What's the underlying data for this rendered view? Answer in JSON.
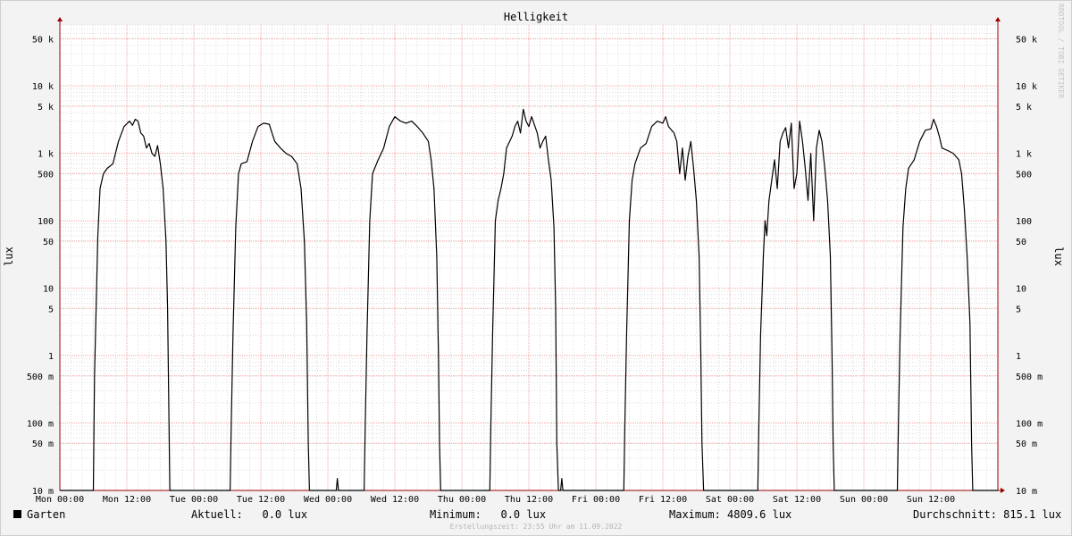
{
  "chart_data": {
    "type": "line",
    "title": "Helligkeit",
    "ylabel": "lux",
    "y_scale": "log",
    "ylim": [
      0.01,
      80000
    ],
    "y_ticks": [
      {
        "value": 50000,
        "label": "50 k"
      },
      {
        "value": 10000,
        "label": "10 k"
      },
      {
        "value": 5000,
        "label": "5 k"
      },
      {
        "value": 1000,
        "label": "1 k"
      },
      {
        "value": 500,
        "label": "500"
      },
      {
        "value": 100,
        "label": "100"
      },
      {
        "value": 50,
        "label": "50"
      },
      {
        "value": 10,
        "label": "10"
      },
      {
        "value": 5,
        "label": "5"
      },
      {
        "value": 1,
        "label": "1"
      },
      {
        "value": 0.5,
        "label": "500 m"
      },
      {
        "value": 0.1,
        "label": "100 m"
      },
      {
        "value": 0.05,
        "label": "50 m"
      },
      {
        "value": 0.01,
        "label": "10 m"
      }
    ],
    "x_unit": "hours",
    "xlim": [
      0,
      168
    ],
    "x_ticks": [
      {
        "value": 0,
        "label": "Mon 00:00"
      },
      {
        "value": 12,
        "label": "Mon 12:00"
      },
      {
        "value": 24,
        "label": "Tue 00:00"
      },
      {
        "value": 36,
        "label": "Tue 12:00"
      },
      {
        "value": 48,
        "label": "Wed 00:00"
      },
      {
        "value": 60,
        "label": "Wed 12:00"
      },
      {
        "value": 72,
        "label": "Thu 00:00"
      },
      {
        "value": 84,
        "label": "Thu 12:00"
      },
      {
        "value": 96,
        "label": "Fri 00:00"
      },
      {
        "value": 108,
        "label": "Fri 12:00"
      },
      {
        "value": 120,
        "label": "Sat 00:00"
      },
      {
        "value": 132,
        "label": "Sat 12:00"
      },
      {
        "value": 144,
        "label": "Sun 00:00"
      },
      {
        "value": 156,
        "label": "Sun 12:00"
      }
    ],
    "grid": true,
    "colors": {
      "line": "#000000",
      "grid": "#f2a6a6",
      "axis": "#9b0000",
      "background": "#ffffff"
    },
    "series": [
      {
        "name": "Garten",
        "points": [
          [
            0,
            0.01
          ],
          [
            6.0,
            0.01
          ],
          [
            6.2,
            0.5
          ],
          [
            6.5,
            5
          ],
          [
            6.8,
            60
          ],
          [
            7.2,
            300
          ],
          [
            7.8,
            500
          ],
          [
            8.5,
            600
          ],
          [
            9.5,
            700
          ],
          [
            10.5,
            1500
          ],
          [
            11.5,
            2500
          ],
          [
            12.5,
            3000
          ],
          [
            13.0,
            2600
          ],
          [
            13.5,
            3200
          ],
          [
            14.0,
            3000
          ],
          [
            14.5,
            2000
          ],
          [
            15.0,
            1800
          ],
          [
            15.5,
            1200
          ],
          [
            16.0,
            1400
          ],
          [
            16.5,
            1000
          ],
          [
            17.0,
            900
          ],
          [
            17.5,
            1300
          ],
          [
            18.0,
            700
          ],
          [
            18.5,
            300
          ],
          [
            19.0,
            50
          ],
          [
            19.3,
            5
          ],
          [
            19.5,
            0.2
          ],
          [
            19.7,
            0.01
          ],
          [
            30.5,
            0.01
          ],
          [
            30.7,
            0.1
          ],
          [
            31.0,
            2
          ],
          [
            31.5,
            80
          ],
          [
            32.0,
            500
          ],
          [
            32.5,
            700
          ],
          [
            33.5,
            750
          ],
          [
            34.5,
            1500
          ],
          [
            35.5,
            2500
          ],
          [
            36.5,
            2800
          ],
          [
            37.5,
            2700
          ],
          [
            38.0,
            2000
          ],
          [
            38.5,
            1500
          ],
          [
            39.5,
            1200
          ],
          [
            40.5,
            1000
          ],
          [
            41.5,
            900
          ],
          [
            42.5,
            700
          ],
          [
            43.2,
            300
          ],
          [
            43.8,
            50
          ],
          [
            44.2,
            3
          ],
          [
            44.5,
            0.05
          ],
          [
            44.7,
            0.01
          ],
          [
            49.5,
            0.01
          ],
          [
            49.7,
            0.015
          ],
          [
            49.9,
            0.01
          ],
          [
            54.5,
            0.01
          ],
          [
            54.7,
            0.1
          ],
          [
            55.0,
            2
          ],
          [
            55.5,
            100
          ],
          [
            56.0,
            500
          ],
          [
            57.0,
            800
          ],
          [
            58.0,
            1200
          ],
          [
            59.0,
            2500
          ],
          [
            60.0,
            3500
          ],
          [
            61.0,
            3000
          ],
          [
            62.0,
            2800
          ],
          [
            63.0,
            3000
          ],
          [
            64.0,
            2500
          ],
          [
            65.0,
            2000
          ],
          [
            66.0,
            1500
          ],
          [
            66.5,
            800
          ],
          [
            67.0,
            300
          ],
          [
            67.5,
            30
          ],
          [
            67.8,
            1
          ],
          [
            68.0,
            0.05
          ],
          [
            68.2,
            0.01
          ],
          [
            77.0,
            0.01
          ],
          [
            77.2,
            0.1
          ],
          [
            77.5,
            2
          ],
          [
            78.0,
            100
          ],
          [
            78.5,
            200
          ],
          [
            79.0,
            300
          ],
          [
            79.5,
            500
          ],
          [
            80.0,
            1200
          ],
          [
            81.0,
            1800
          ],
          [
            81.5,
            2500
          ],
          [
            82.0,
            3000
          ],
          [
            82.5,
            2000
          ],
          [
            83.0,
            4500
          ],
          [
            83.5,
            3000
          ],
          [
            84.0,
            2500
          ],
          [
            84.5,
            3500
          ],
          [
            85.5,
            2000
          ],
          [
            86.0,
            1200
          ],
          [
            86.5,
            1500
          ],
          [
            87.0,
            1800
          ],
          [
            87.5,
            800
          ],
          [
            88.0,
            400
          ],
          [
            88.5,
            80
          ],
          [
            88.8,
            5
          ],
          [
            89.0,
            0.05
          ],
          [
            89.3,
            0.01
          ],
          [
            89.7,
            0.01
          ],
          [
            89.9,
            0.015
          ],
          [
            90.1,
            0.01
          ],
          [
            101.0,
            0.01
          ],
          [
            101.2,
            0.1
          ],
          [
            101.5,
            2
          ],
          [
            102.0,
            100
          ],
          [
            102.5,
            400
          ],
          [
            103.0,
            700
          ],
          [
            104.0,
            1200
          ],
          [
            105.0,
            1400
          ],
          [
            106.0,
            2500
          ],
          [
            107.0,
            3000
          ],
          [
            108.0,
            2800
          ],
          [
            108.5,
            3500
          ],
          [
            109.0,
            2500
          ],
          [
            110.0,
            2000
          ],
          [
            110.5,
            1500
          ],
          [
            111.0,
            500
          ],
          [
            111.5,
            1200
          ],
          [
            112.0,
            400
          ],
          [
            112.5,
            900
          ],
          [
            113.0,
            1500
          ],
          [
            113.5,
            600
          ],
          [
            114.0,
            200
          ],
          [
            114.5,
            30
          ],
          [
            114.8,
            1
          ],
          [
            115.0,
            0.05
          ],
          [
            115.3,
            0.01
          ],
          [
            125.0,
            0.01
          ],
          [
            125.2,
            0.1
          ],
          [
            125.5,
            2
          ],
          [
            126.0,
            30
          ],
          [
            126.3,
            100
          ],
          [
            126.6,
            60
          ],
          [
            127.0,
            200
          ],
          [
            127.5,
            400
          ],
          [
            128.0,
            800
          ],
          [
            128.5,
            300
          ],
          [
            129.0,
            1500
          ],
          [
            129.5,
            2000
          ],
          [
            130.0,
            2400
          ],
          [
            130.5,
            1200
          ],
          [
            131.0,
            2800
          ],
          [
            131.5,
            300
          ],
          [
            132.0,
            500
          ],
          [
            132.5,
            3000
          ],
          [
            133.0,
            1500
          ],
          [
            133.5,
            600
          ],
          [
            134.0,
            200
          ],
          [
            134.5,
            1000
          ],
          [
            135.0,
            100
          ],
          [
            135.5,
            1200
          ],
          [
            136.0,
            2200
          ],
          [
            136.5,
            1500
          ],
          [
            137.0,
            600
          ],
          [
            137.5,
            200
          ],
          [
            138.0,
            30
          ],
          [
            138.3,
            1
          ],
          [
            138.5,
            0.05
          ],
          [
            138.7,
            0.01
          ],
          [
            150.0,
            0.01
          ],
          [
            150.2,
            0.1
          ],
          [
            150.5,
            2
          ],
          [
            151.0,
            80
          ],
          [
            151.5,
            300
          ],
          [
            152.0,
            600
          ],
          [
            153.0,
            800
          ],
          [
            154.0,
            1500
          ],
          [
            155.0,
            2200
          ],
          [
            156.0,
            2300
          ],
          [
            156.5,
            3200
          ],
          [
            157.0,
            2500
          ],
          [
            157.5,
            1800
          ],
          [
            158.0,
            1200
          ],
          [
            159.0,
            1100
          ],
          [
            160.0,
            1000
          ],
          [
            161.0,
            800
          ],
          [
            161.5,
            500
          ],
          [
            162.0,
            150
          ],
          [
            162.5,
            30
          ],
          [
            163.0,
            3
          ],
          [
            163.3,
            0.05
          ],
          [
            163.5,
            0.01
          ],
          [
            168.0,
            0.01
          ]
        ]
      }
    ]
  },
  "legend": {
    "series_name": "Garten",
    "current": "Aktuell:   0.0 lux",
    "minimum": "Minimum:   0.0 lux",
    "maximum": "Maximum: 4809.6 lux",
    "average": "Durchschnitt: 815.1 lux"
  },
  "footer_note": "Erstellungszeit: 23:55 Uhr am 11.09.2022",
  "watermark": "RRDTOOL / TOBI OETIKER"
}
